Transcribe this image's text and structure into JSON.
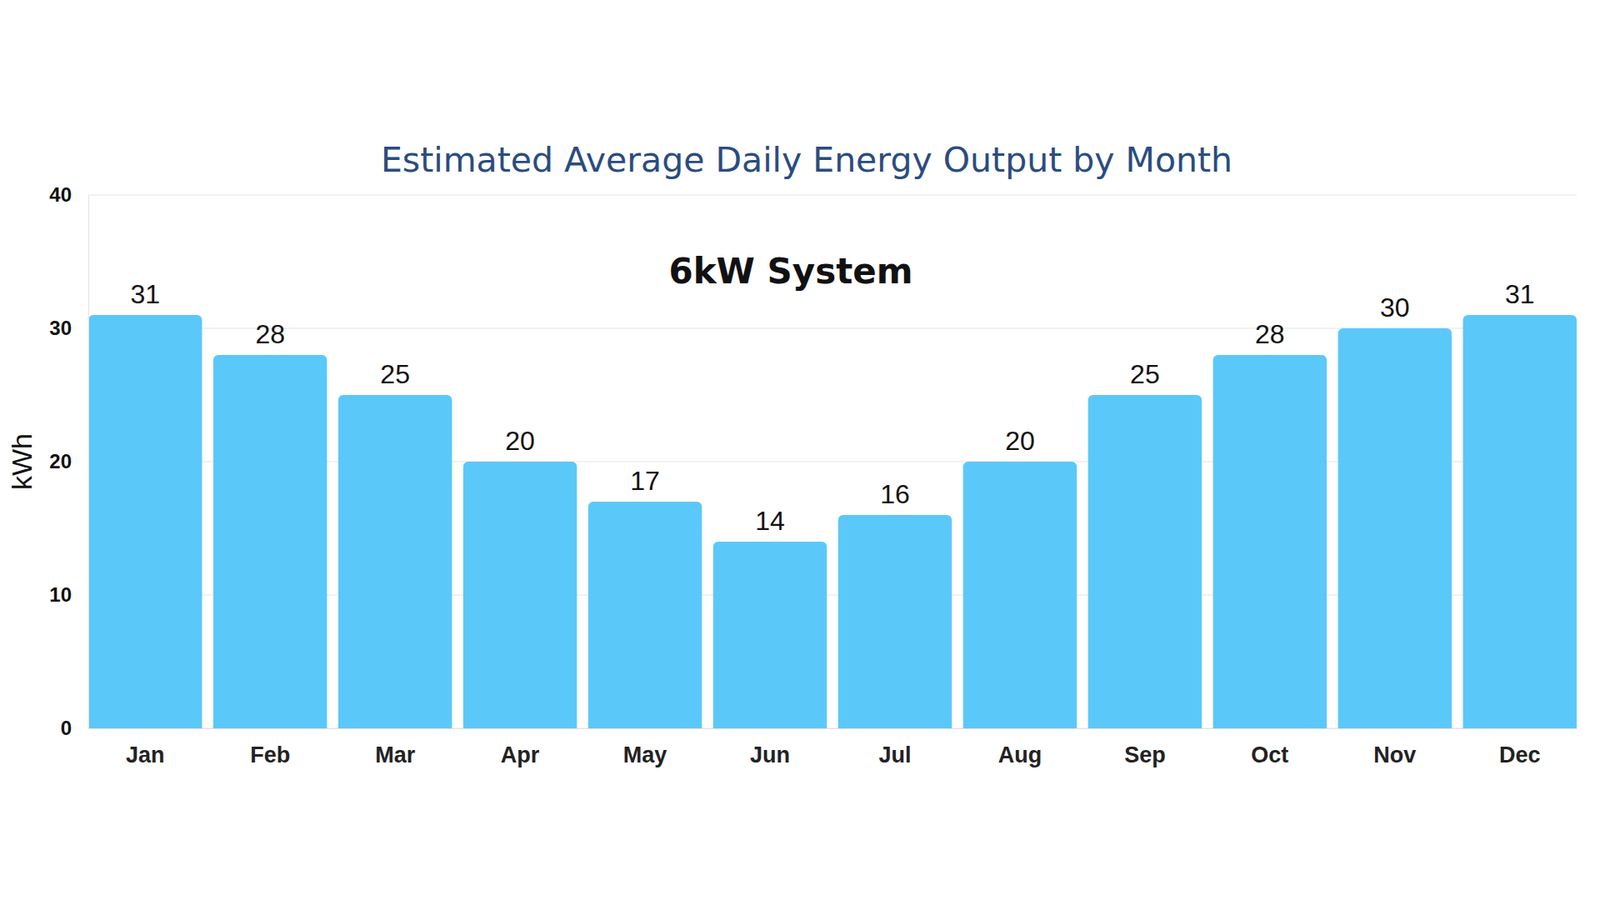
{
  "chart_data": {
    "type": "bar",
    "title": "Estimated Average Daily Energy Output by Month",
    "subtitle": "6kW System",
    "y_label": "kWh",
    "categories": [
      "Jan",
      "Feb",
      "Mar",
      "Apr",
      "May",
      "Jun",
      "Jul",
      "Aug",
      "Sep",
      "Oct",
      "Nov",
      "Dec"
    ],
    "values": [
      31,
      28,
      25,
      20,
      17,
      14,
      16,
      20,
      25,
      28,
      30,
      31
    ],
    "color": "#5bc8fa",
    "ylim": [
      0,
      40
    ],
    "yticks": [
      0,
      10,
      20,
      30,
      40
    ],
    "grid": true,
    "data_labels": true
  }
}
